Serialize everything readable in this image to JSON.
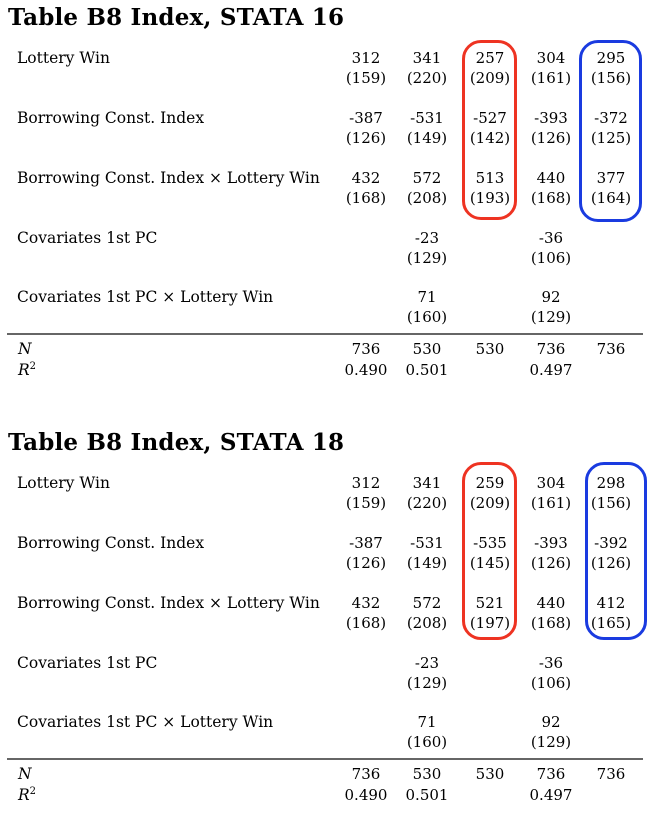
{
  "tables": [
    {
      "title": "Table B8 Index, STATA 16",
      "rows": [
        {
          "label": "Lottery Win",
          "coef": [
            "312",
            "341",
            "257",
            "304",
            "295"
          ],
          "se": [
            "(159)",
            "(220)",
            "(209)",
            "(161)",
            "(156)"
          ]
        },
        {
          "label": "Borrowing Const. Index",
          "coef": [
            "-387",
            "-531",
            "-527",
            "-393",
            "-372"
          ],
          "se": [
            "(126)",
            "(149)",
            "(142)",
            "(126)",
            "(125)"
          ]
        },
        {
          "label": "Borrowing Const. Index × Lottery Win",
          "coef": [
            "432",
            "572",
            "513",
            "440",
            "377"
          ],
          "se": [
            "(168)",
            "(208)",
            "(193)",
            "(168)",
            "(164)"
          ]
        },
        {
          "label": "Covariates 1st PC",
          "coef": [
            "",
            "-23",
            "",
            "-36",
            ""
          ],
          "se": [
            "",
            "(129)",
            "",
            "(106)",
            ""
          ]
        },
        {
          "label": "Covariates 1st PC × Lottery Win",
          "coef": [
            "",
            "71",
            "",
            "92",
            ""
          ],
          "se": [
            "",
            "(160)",
            "",
            "(129)",
            ""
          ]
        }
      ],
      "n_label": "N",
      "n": [
        "736",
        "530",
        "530",
        "736",
        "736"
      ],
      "r2_label": "R",
      "r2_sup": "2",
      "r2": [
        "0.490",
        "0.501",
        "",
        "0.497",
        ""
      ],
      "highlight_colors": {
        "col3": "#ee3322",
        "col5": "#1a3be0"
      }
    },
    {
      "title": "Table B8 Index, STATA 18",
      "rows": [
        {
          "label": "Lottery Win",
          "coef": [
            "312",
            "341",
            "259",
            "304",
            "298"
          ],
          "se": [
            "(159)",
            "(220)",
            "(209)",
            "(161)",
            "(156)"
          ]
        },
        {
          "label": "Borrowing Const. Index",
          "coef": [
            "-387",
            "-531",
            "-535",
            "-393",
            "-392"
          ],
          "se": [
            "(126)",
            "(149)",
            "(145)",
            "(126)",
            "(126)"
          ]
        },
        {
          "label": "Borrowing Const. Index × Lottery Win",
          "coef": [
            "432",
            "572",
            "521",
            "440",
            "412"
          ],
          "se": [
            "(168)",
            "(208)",
            "(197)",
            "(168)",
            "(165)"
          ]
        },
        {
          "label": "Covariates 1st PC",
          "coef": [
            "",
            "-23",
            "",
            "-36",
            ""
          ],
          "se": [
            "",
            "(129)",
            "",
            "(106)",
            ""
          ]
        },
        {
          "label": "Covariates 1st PC × Lottery Win",
          "coef": [
            "",
            "71",
            "",
            "92",
            ""
          ],
          "se": [
            "",
            "(160)",
            "",
            "(129)",
            ""
          ]
        }
      ],
      "n_label": "N",
      "n": [
        "736",
        "530",
        "530",
        "736",
        "736"
      ],
      "r2_label": "R",
      "r2_sup": "2",
      "r2": [
        "0.490",
        "0.501",
        "",
        "0.497",
        ""
      ],
      "highlight_colors": {
        "col3": "#ee3322",
        "col5": "#1a3be0"
      }
    }
  ]
}
